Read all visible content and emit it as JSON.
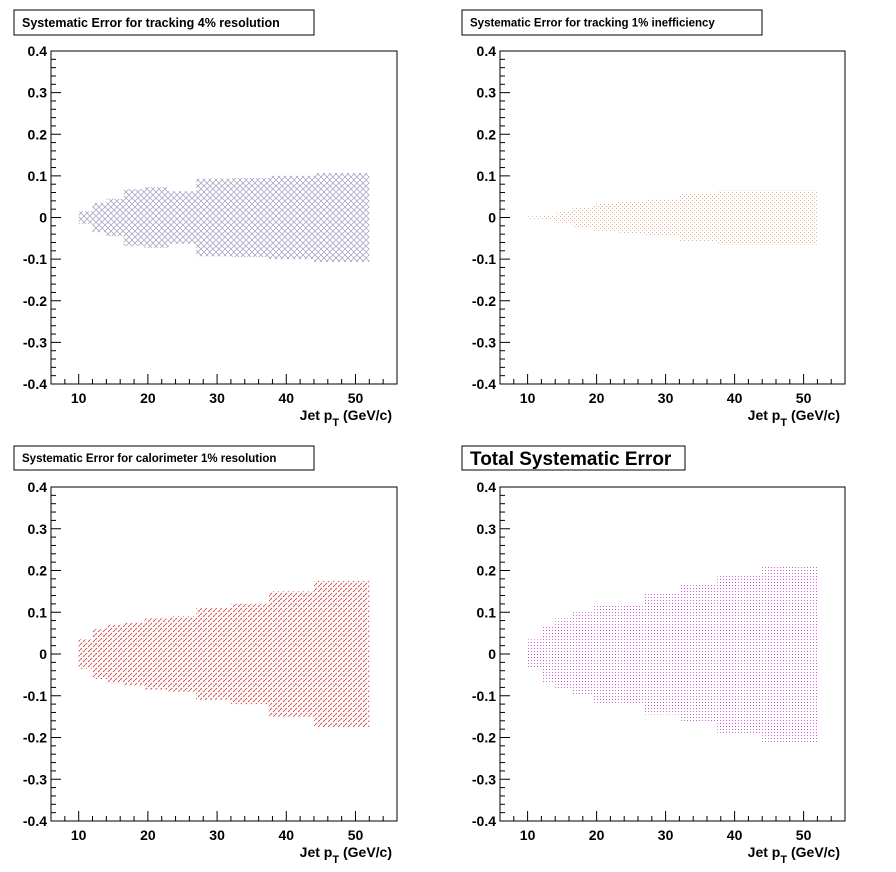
{
  "chart_data": [
    {
      "type": "area",
      "title": "Systematic Error for tracking 4% resolution",
      "xlabel_main": "Jet p",
      "xlabel_sub": "T",
      "xlabel_unit": "(GeV/c)",
      "ylabel": "",
      "xlim": [
        6,
        56
      ],
      "ylim": [
        -0.4,
        0.4
      ],
      "xticks": [
        10,
        20,
        30,
        40,
        50
      ],
      "yticks": [
        -0.4,
        -0.3,
        -0.2,
        -0.1,
        0,
        0.1,
        0.2,
        0.3,
        0.4
      ],
      "ytick_labels": [
        "-0.4",
        "-0.3",
        "-0.2",
        "-0.1",
        "0",
        "0.1",
        "0.2",
        "0.3",
        "0.4"
      ],
      "fill_pattern": "crosshatch",
      "color": "#a8a8c8",
      "bins": [
        {
          "x0": 10,
          "x1": 12,
          "y": 0.015
        },
        {
          "x0": 12,
          "x1": 14,
          "y": 0.035
        },
        {
          "x0": 14,
          "x1": 16.5,
          "y": 0.045
        },
        {
          "x0": 16.5,
          "x1": 19.5,
          "y": 0.068
        },
        {
          "x0": 19.5,
          "x1": 23,
          "y": 0.073
        },
        {
          "x0": 23,
          "x1": 27,
          "y": 0.063
        },
        {
          "x0": 27,
          "x1": 32,
          "y": 0.093
        },
        {
          "x0": 32,
          "x1": 37.5,
          "y": 0.095
        },
        {
          "x0": 37.5,
          "x1": 44,
          "y": 0.1
        },
        {
          "x0": 44,
          "x1": 52,
          "y": 0.107
        }
      ]
    },
    {
      "type": "area",
      "title": "Systematic Error for tracking 1% inefficiency",
      "xlabel_main": "Jet p",
      "xlabel_sub": "T",
      "xlabel_unit": "(GeV/c)",
      "ylabel": "",
      "xlim": [
        6,
        56
      ],
      "ylim": [
        -0.4,
        0.4
      ],
      "xticks": [
        10,
        20,
        30,
        40,
        50
      ],
      "yticks": [
        -0.4,
        -0.3,
        -0.2,
        -0.1,
        0,
        0.1,
        0.2,
        0.3,
        0.4
      ],
      "ytick_labels": [
        "-0.4",
        "-0.3",
        "-0.2",
        "-0.1",
        "0",
        "0.1",
        "0.2",
        "0.3",
        "0.4"
      ],
      "fill_pattern": "dots-diagonal",
      "color": "#e8b088",
      "bins": [
        {
          "x0": 10,
          "x1": 12,
          "y": 0.003
        },
        {
          "x0": 12,
          "x1": 14,
          "y": 0.006
        },
        {
          "x0": 14,
          "x1": 16.5,
          "y": 0.013
        },
        {
          "x0": 16.5,
          "x1": 19.5,
          "y": 0.025
        },
        {
          "x0": 19.5,
          "x1": 23,
          "y": 0.033
        },
        {
          "x0": 23,
          "x1": 27,
          "y": 0.04
        },
        {
          "x0": 27,
          "x1": 32,
          "y": 0.045
        },
        {
          "x0": 32,
          "x1": 37.5,
          "y": 0.058
        },
        {
          "x0": 37.5,
          "x1": 44,
          "y": 0.065
        },
        {
          "x0": 44,
          "x1": 52,
          "y": 0.065
        }
      ]
    },
    {
      "type": "area",
      "title": "Systematic Error for calorimeter 1% resolution",
      "xlabel_main": "Jet p",
      "xlabel_sub": "T",
      "xlabel_unit": "(GeV/c)",
      "ylabel": "",
      "xlim": [
        6,
        56
      ],
      "ylim": [
        -0.4,
        0.4
      ],
      "xticks": [
        10,
        20,
        30,
        40,
        50
      ],
      "yticks": [
        -0.4,
        -0.3,
        -0.2,
        -0.1,
        0,
        0.1,
        0.2,
        0.3,
        0.4
      ],
      "ytick_labels": [
        "-0.4",
        "-0.3",
        "-0.2",
        "-0.1",
        "0",
        "0.1",
        "0.2",
        "0.3",
        "0.4"
      ],
      "fill_pattern": "diagonal-dashes",
      "color": "#d84848",
      "bins": [
        {
          "x0": 10,
          "x1": 12,
          "y": 0.035
        },
        {
          "x0": 12,
          "x1": 14,
          "y": 0.06
        },
        {
          "x0": 14,
          "x1": 16.5,
          "y": 0.07
        },
        {
          "x0": 16.5,
          "x1": 19.5,
          "y": 0.075
        },
        {
          "x0": 19.5,
          "x1": 23,
          "y": 0.085
        },
        {
          "x0": 23,
          "x1": 27,
          "y": 0.09
        },
        {
          "x0": 27,
          "x1": 32,
          "y": 0.11
        },
        {
          "x0": 32,
          "x1": 37.5,
          "y": 0.12
        },
        {
          "x0": 37.5,
          "x1": 44,
          "y": 0.15
        },
        {
          "x0": 44,
          "x1": 52,
          "y": 0.175
        }
      ]
    },
    {
      "type": "area",
      "title": "Total Systematic Error",
      "xlabel_main": "Jet p",
      "xlabel_sub": "T",
      "xlabel_unit": "(GeV/c)",
      "ylabel": "",
      "xlim": [
        6,
        56
      ],
      "ylim": [
        -0.4,
        0.4
      ],
      "xticks": [
        10,
        20,
        30,
        40,
        50
      ],
      "yticks": [
        -0.4,
        -0.3,
        -0.2,
        -0.1,
        0,
        0.1,
        0.2,
        0.3,
        0.4
      ],
      "ytick_labels": [
        "-0.4",
        "-0.3",
        "-0.2",
        "-0.1",
        "0",
        "0.1",
        "0.2",
        "0.3",
        "0.4"
      ],
      "fill_pattern": "fine-dots",
      "color": "#d060d8",
      "bins": [
        {
          "x0": 10,
          "x1": 12,
          "y": 0.035
        },
        {
          "x0": 12,
          "x1": 14,
          "y": 0.068
        },
        {
          "x0": 14,
          "x1": 16.5,
          "y": 0.085
        },
        {
          "x0": 16.5,
          "x1": 19.5,
          "y": 0.1
        },
        {
          "x0": 19.5,
          "x1": 23,
          "y": 0.117
        },
        {
          "x0": 23,
          "x1": 27,
          "y": 0.117
        },
        {
          "x0": 27,
          "x1": 32,
          "y": 0.145
        },
        {
          "x0": 32,
          "x1": 37.5,
          "y": 0.165
        },
        {
          "x0": 37.5,
          "x1": 44,
          "y": 0.19
        },
        {
          "x0": 44,
          "x1": 52,
          "y": 0.213
        }
      ]
    }
  ]
}
